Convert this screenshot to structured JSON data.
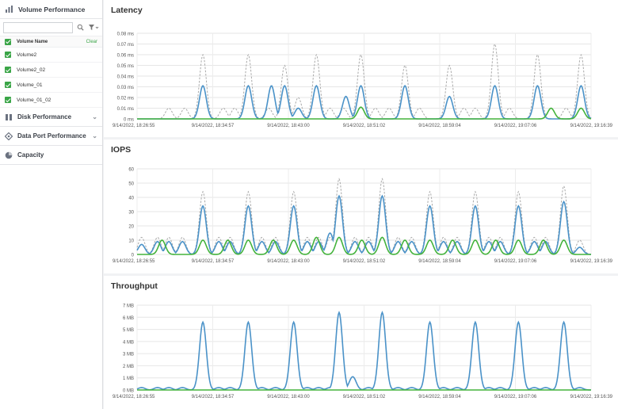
{
  "sidebar": {
    "title": "Volume Performance",
    "search": {
      "placeholder": "",
      "value": ""
    },
    "list_header": {
      "name": "Volume Name",
      "clear": "Clear"
    },
    "volumes": [
      "Volume2",
      "Volume2_02",
      "Volume_01",
      "Volume_01_02"
    ],
    "sections": [
      "Disk Performance",
      "Data Port Performance",
      "Capacity"
    ]
  },
  "colors": {
    "blue": "#4a92c8",
    "green": "#44b33c",
    "gray": "#a9a9a9",
    "accent": "#3aa547"
  },
  "icons": [
    "bar-chart-icon",
    "search-icon",
    "filter-icon",
    "disk-icon",
    "data-port-icon",
    "capacity-pie-icon",
    "chevron-down-icon"
  ],
  "x_ticks": [
    "9/14/2022, 18:26:55",
    "9/14/2022, 18:34:57",
    "9/14/2022, 18:43:00",
    "9/14/2022, 18:51:02",
    "9/14/2022, 18:59:04",
    "9/14/2022, 19:07:06",
    "9/14/2022, 19:16:39"
  ],
  "chart_data": [
    {
      "type": "line",
      "title": "Latency",
      "y_ticks": [
        "0.08 ms",
        "0.07 ms",
        "0.06 ms",
        "0.05 ms",
        "0.04 ms",
        "0.03 ms",
        "0.02 ms",
        "0.01 ms",
        "0 ms"
      ],
      "ylim": [
        0,
        0.08
      ],
      "grid": true,
      "x": [
        "9/14/2022, 18:26:55",
        "9/14/2022, 18:34:57",
        "9/14/2022, 18:43:00",
        "9/14/2022, 18:51:02",
        "9/14/2022, 18:59:04",
        "9/14/2022, 19:07:06",
        "9/14/2022, 19:16:39"
      ],
      "series": [
        {
          "color": "#a9a9a9",
          "dash": true,
          "peaks": [
            [
              0.07,
              0.01
            ],
            [
              0.105,
              0.01
            ],
            [
              0.145,
              0.06
            ],
            [
              0.19,
              0.01
            ],
            [
              0.215,
              0.01
            ],
            [
              0.245,
              0.06
            ],
            [
              0.29,
              0.01
            ],
            [
              0.325,
              0.05
            ],
            [
              0.355,
              0.02
            ],
            [
              0.395,
              0.06
            ],
            [
              0.425,
              0.01
            ],
            [
              0.455,
              0.01
            ],
            [
              0.493,
              0.06
            ],
            [
              0.525,
              0.01
            ],
            [
              0.555,
              0.01
            ],
            [
              0.59,
              0.05
            ],
            [
              0.622,
              0.01
            ],
            [
              0.688,
              0.05
            ],
            [
              0.72,
              0.01
            ],
            [
              0.745,
              0.01
            ],
            [
              0.788,
              0.07
            ],
            [
              0.82,
              0.01
            ],
            [
              0.882,
              0.06
            ],
            [
              0.912,
              0.01
            ],
            [
              0.945,
              0.01
            ],
            [
              0.978,
              0.06
            ]
          ]
        },
        {
          "color": "#4a92c8",
          "dash": false,
          "peaks": [
            [
              0.145,
              0.031
            ],
            [
              0.245,
              0.031
            ],
            [
              0.296,
              0.031
            ],
            [
              0.325,
              0.031
            ],
            [
              0.355,
              0.01
            ],
            [
              0.395,
              0.031
            ],
            [
              0.46,
              0.021
            ],
            [
              0.493,
              0.031
            ],
            [
              0.59,
              0.031
            ],
            [
              0.688,
              0.021
            ],
            [
              0.788,
              0.031
            ],
            [
              0.882,
              0.031
            ],
            [
              0.978,
              0.031
            ]
          ]
        },
        {
          "color": "#44b33c",
          "dash": false,
          "peaks": [
            [
              0.493,
              0.011
            ],
            [
              0.912,
              0.01
            ],
            [
              0.978,
              0.01
            ]
          ]
        }
      ]
    },
    {
      "type": "line",
      "title": "IOPS",
      "y_ticks": [
        "60",
        "50",
        "40",
        "30",
        "20",
        "10",
        "0"
      ],
      "ylim": [
        0,
        60
      ],
      "grid": true,
      "x": [
        "9/14/2022, 18:26:55",
        "9/14/2022, 18:34:57",
        "9/14/2022, 18:43:00",
        "9/14/2022, 18:51:02",
        "9/14/2022, 18:59:04",
        "9/14/2022, 19:07:06",
        "9/14/2022, 19:16:39"
      ],
      "series": [
        {
          "color": "#a9a9a9",
          "dash": true,
          "peaks": [
            [
              0.01,
              12
            ],
            [
              0.045,
              12
            ],
            [
              0.07,
              12
            ],
            [
              0.1,
              12
            ],
            [
              0.145,
              44
            ],
            [
              0.18,
              12
            ],
            [
              0.205,
              12
            ],
            [
              0.245,
              44
            ],
            [
              0.275,
              12
            ],
            [
              0.305,
              12
            ],
            [
              0.345,
              44
            ],
            [
              0.375,
              12
            ],
            [
              0.4,
              12
            ],
            [
              0.425,
              12
            ],
            [
              0.445,
              53
            ],
            [
              0.48,
              12
            ],
            [
              0.51,
              12
            ],
            [
              0.54,
              53
            ],
            [
              0.575,
              12
            ],
            [
              0.605,
              12
            ],
            [
              0.645,
              44
            ],
            [
              0.675,
              12
            ],
            [
              0.705,
              12
            ],
            [
              0.745,
              44
            ],
            [
              0.775,
              12
            ],
            [
              0.8,
              12
            ],
            [
              0.84,
              44
            ],
            [
              0.875,
              12
            ],
            [
              0.9,
              12
            ],
            [
              0.94,
              48
            ],
            [
              0.975,
              10
            ]
          ]
        },
        {
          "color": "#4a92c8",
          "dash": false,
          "peaks": [
            [
              0.01,
              7
            ],
            [
              0.045,
              9
            ],
            [
              0.07,
              9
            ],
            [
              0.1,
              9
            ],
            [
              0.145,
              34
            ],
            [
              0.18,
              9
            ],
            [
              0.205,
              9
            ],
            [
              0.245,
              34
            ],
            [
              0.275,
              9
            ],
            [
              0.305,
              9
            ],
            [
              0.345,
              34
            ],
            [
              0.375,
              9
            ],
            [
              0.4,
              9
            ],
            [
              0.425,
              15
            ],
            [
              0.445,
              41
            ],
            [
              0.48,
              9
            ],
            [
              0.51,
              9
            ],
            [
              0.54,
              41
            ],
            [
              0.575,
              9
            ],
            [
              0.605,
              9
            ],
            [
              0.645,
              34
            ],
            [
              0.675,
              9
            ],
            [
              0.705,
              9
            ],
            [
              0.745,
              34
            ],
            [
              0.775,
              9
            ],
            [
              0.8,
              9
            ],
            [
              0.84,
              34
            ],
            [
              0.875,
              9
            ],
            [
              0.9,
              9
            ],
            [
              0.94,
              37
            ],
            [
              0.975,
              5
            ]
          ]
        },
        {
          "color": "#44b33c",
          "dash": false,
          "peaks": [
            [
              0.055,
              10
            ],
            [
              0.145,
              10
            ],
            [
              0.2,
              10
            ],
            [
              0.245,
              10
            ],
            [
              0.3,
              10
            ],
            [
              0.345,
              10
            ],
            [
              0.395,
              12
            ],
            [
              0.445,
              12
            ],
            [
              0.495,
              10
            ],
            [
              0.54,
              12
            ],
            [
              0.59,
              10
            ],
            [
              0.645,
              10
            ],
            [
              0.695,
              10
            ],
            [
              0.745,
              10
            ],
            [
              0.79,
              10
            ],
            [
              0.84,
              10
            ],
            [
              0.895,
              10
            ],
            [
              0.94,
              10
            ]
          ]
        }
      ]
    },
    {
      "type": "line",
      "title": "Throughput",
      "y_ticks": [
        "7 MB",
        "6 MB",
        "5 MB",
        "4 MB",
        "3 MB",
        "2 MB",
        "1 MB",
        "0 MB"
      ],
      "ylim": [
        0,
        7
      ],
      "grid": true,
      "x": [
        "9/14/2022, 18:26:55",
        "9/14/2022, 18:34:57",
        "9/14/2022, 18:43:00",
        "9/14/2022, 18:51:02",
        "9/14/2022, 18:59:04",
        "9/14/2022, 19:07:06",
        "9/14/2022, 19:16:39"
      ],
      "series": [
        {
          "color": "#4a92c8",
          "dash": false,
          "peaks": [
            [
              0.01,
              0.2
            ],
            [
              0.045,
              0.2
            ],
            [
              0.07,
              0.2
            ],
            [
              0.1,
              0.2
            ],
            [
              0.145,
              5.6
            ],
            [
              0.18,
              0.2
            ],
            [
              0.205,
              0.2
            ],
            [
              0.245,
              5.6
            ],
            [
              0.275,
              0.2
            ],
            [
              0.305,
              0.2
            ],
            [
              0.345,
              5.6
            ],
            [
              0.375,
              0.2
            ],
            [
              0.4,
              0.2
            ],
            [
              0.425,
              0.2
            ],
            [
              0.445,
              6.4
            ],
            [
              0.475,
              1.1
            ],
            [
              0.51,
              0.2
            ],
            [
              0.54,
              6.4
            ],
            [
              0.575,
              0.2
            ],
            [
              0.605,
              0.2
            ],
            [
              0.645,
              5.6
            ],
            [
              0.675,
              0.2
            ],
            [
              0.705,
              0.2
            ],
            [
              0.745,
              5.6
            ],
            [
              0.775,
              0.2
            ],
            [
              0.8,
              0.2
            ],
            [
              0.84,
              5.6
            ],
            [
              0.875,
              0.2
            ],
            [
              0.9,
              0.2
            ],
            [
              0.94,
              5.6
            ],
            [
              0.975,
              0.2
            ]
          ]
        },
        {
          "color": "#44b33c",
          "dash": false,
          "peaks": []
        }
      ]
    }
  ]
}
